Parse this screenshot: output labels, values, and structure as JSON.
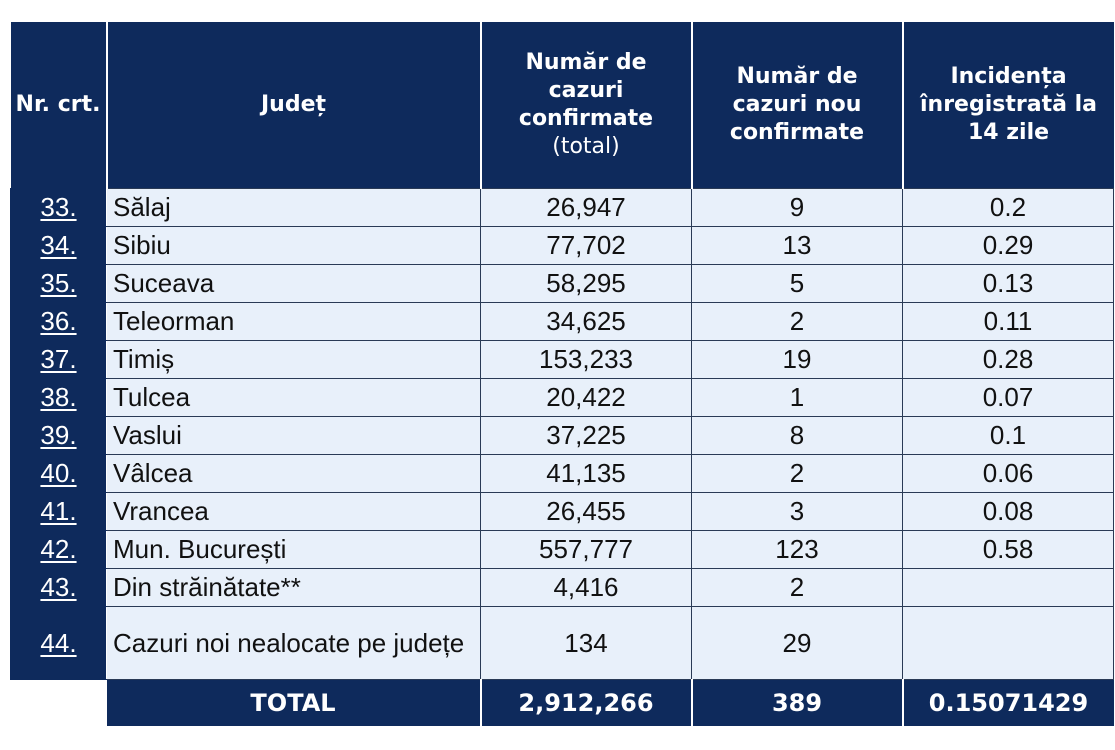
{
  "header": {
    "nr": "Nr. crt.",
    "judet": "Județ",
    "total_line1": "Număr de cazuri confirmate",
    "total_line2": "(total)",
    "new": "Număr de cazuri nou confirmate",
    "incidence": "Incidența înregistrată la 14 zile"
  },
  "rows": [
    {
      "nr": "33.",
      "judet": "Sălaj",
      "total": "26,947",
      "new": "9",
      "incidence": "0.2"
    },
    {
      "nr": "34.",
      "judet": "Sibiu",
      "total": "77,702",
      "new": "13",
      "incidence": "0.29"
    },
    {
      "nr": "35.",
      "judet": "Suceava",
      "total": "58,295",
      "new": "5",
      "incidence": "0.13"
    },
    {
      "nr": "36.",
      "judet": "Teleorman",
      "total": "34,625",
      "new": "2",
      "incidence": "0.11"
    },
    {
      "nr": "37.",
      "judet": "Timiș",
      "total": "153,233",
      "new": "19",
      "incidence": "0.28"
    },
    {
      "nr": "38.",
      "judet": "Tulcea",
      "total": "20,422",
      "new": "1",
      "incidence": "0.07"
    },
    {
      "nr": "39.",
      "judet": "Vaslui",
      "total": "37,225",
      "new": "8",
      "incidence": "0.1"
    },
    {
      "nr": "40.",
      "judet": "Vâlcea",
      "total": "41,135",
      "new": "2",
      "incidence": "0.06"
    },
    {
      "nr": "41.",
      "judet": "Vrancea",
      "total": "26,455",
      "new": "3",
      "incidence": "0.08"
    },
    {
      "nr": "42.",
      "judet": "Mun. București",
      "total": "557,777",
      "new": "123",
      "incidence": "0.58"
    },
    {
      "nr": "43.",
      "judet": "Din străinătate**",
      "total": "4,416",
      "new": "2",
      "incidence": ""
    },
    {
      "nr": "44.",
      "judet": "Cazuri noi nealocate pe județe",
      "total": "134",
      "new": "29",
      "incidence": ""
    }
  ],
  "total_row": {
    "label": "TOTAL",
    "total": "2,912,266",
    "new": "389",
    "incidence": "0.15071429"
  },
  "colors": {
    "header_bg": "#0e2a5c",
    "cell_bg": "#e8f0fa"
  }
}
